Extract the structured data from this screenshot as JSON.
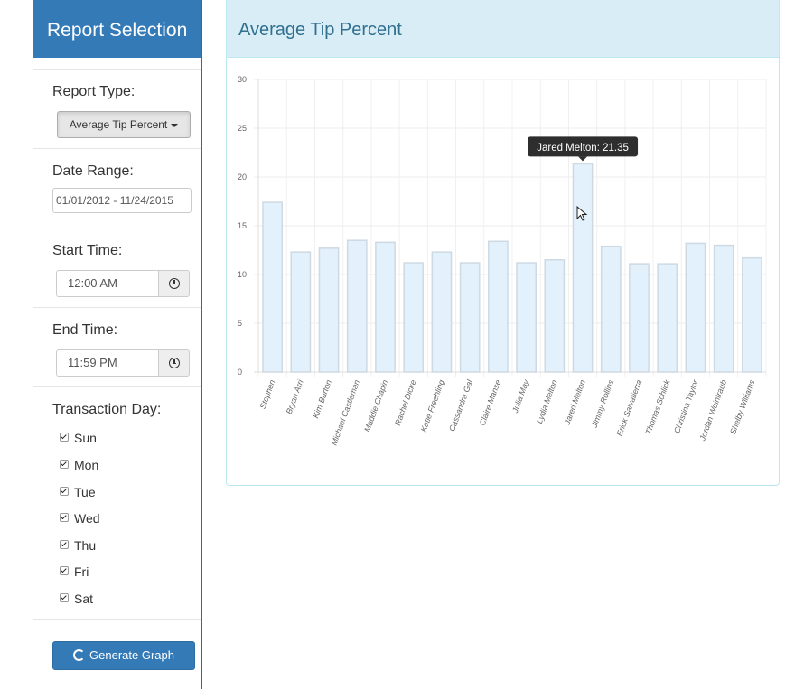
{
  "sidebar": {
    "title": "Report Selection",
    "report_type": {
      "label": "Report Type:",
      "value": "Average Tip Percent"
    },
    "date_range": {
      "label": "Date Range:",
      "value": "01/01/2012 - 11/24/2015"
    },
    "start_time": {
      "label": "Start Time:",
      "value": "12:00 AM"
    },
    "end_time": {
      "label": "End Time:",
      "value": "11:59 PM"
    },
    "transaction_day": {
      "label": "Transaction Day:",
      "days": [
        "Sun",
        "Mon",
        "Tue",
        "Wed",
        "Thu",
        "Fri",
        "Sat"
      ]
    },
    "generate_label": "Generate Graph"
  },
  "panel": {
    "title": "Average Tip Percent"
  },
  "tooltip": {
    "text": "Jared Melton: 21.35"
  },
  "colors": {
    "primary": "#337ab7",
    "bar_fill": "#e3f1fc",
    "bar_stroke": "#cfd9e2",
    "panel_heading": "#d9edf7"
  },
  "chart_data": {
    "type": "bar",
    "title": "Average Tip Percent",
    "xlabel": "",
    "ylabel": "",
    "ylim": [
      0,
      30
    ],
    "yticks": [
      0,
      5,
      10,
      15,
      20,
      25,
      30
    ],
    "grid": true,
    "categories": [
      "Stephen",
      "Bryan Arri",
      "Kim Burton",
      "Michael Castleman",
      "Maddie Chapin",
      "Rachel Dicke",
      "Katie Freehling",
      "Cassandra Gal",
      "Claire Manse",
      "Julia May",
      "Lydia Melton",
      "Jared Melton",
      "Jimmy Rollins",
      "Erick Salvatierra",
      "Thomas Schlick",
      "Christina Taylor",
      "Jordan Weintraub",
      "Shelby Williams"
    ],
    "values": [
      17.4,
      12.3,
      12.7,
      13.5,
      13.3,
      11.2,
      12.3,
      11.2,
      13.4,
      11.2,
      11.5,
      21.35,
      12.9,
      11.1,
      11.1,
      13.2,
      13.0,
      11.7
    ],
    "highlighted": "Jared Melton"
  }
}
